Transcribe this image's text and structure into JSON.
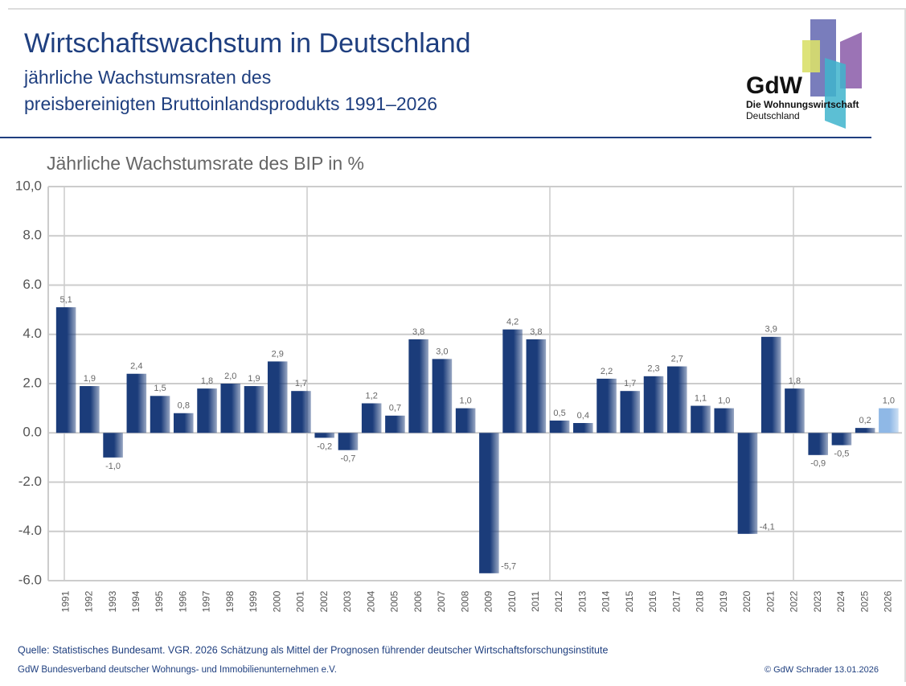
{
  "header": {
    "title": "Wirtschaftswachstum in Deutschland",
    "subtitle_line1": "jährliche Wachstumsraten des",
    "subtitle_line2": "preisbereinigten Bruttoinlandsprodukts 1991–2026"
  },
  "logo": {
    "name": "GdW",
    "line1": "Die Wohnungswirtschaft",
    "line2": "Deutschland"
  },
  "chart_data": {
    "type": "bar",
    "y_axis_label": "Jährliche Wachstumsrate des BIP in %",
    "categories": [
      "1991",
      "1992",
      "1993",
      "1994",
      "1995",
      "1996",
      "1997",
      "1998",
      "1999",
      "2000",
      "2001",
      "2002",
      "2003",
      "2004",
      "2005",
      "2006",
      "2007",
      "2008",
      "2009",
      "2010",
      "2011",
      "2012",
      "2013",
      "2014",
      "2015",
      "2016",
      "2017",
      "2018",
      "2019",
      "2020",
      "2021",
      "2022",
      "2023",
      "2024",
      "2025",
      "2026"
    ],
    "values": [
      5.1,
      1.9,
      -1.0,
      2.4,
      1.5,
      0.8,
      1.8,
      2.0,
      1.9,
      2.9,
      1.7,
      -0.2,
      -0.7,
      1.2,
      0.7,
      3.8,
      3.0,
      1.0,
      -5.7,
      4.2,
      3.8,
      0.5,
      0.4,
      2.2,
      1.7,
      2.3,
      2.7,
      1.1,
      1.0,
      -4.1,
      3.9,
      1.8,
      -0.9,
      -0.5,
      0.2,
      1.0
    ],
    "value_labels": [
      "5,1",
      "1,9",
      "-1,0",
      "2,4",
      "1,5",
      "0,8",
      "1,8",
      "2,0",
      "1,9",
      "2,9",
      "1,7",
      "-0,2",
      "-0,7",
      "1,2",
      "0,7",
      "3,8",
      "3,0",
      "1,0",
      "-5,7",
      "4,2",
      "3,8",
      "0,5",
      "0,4",
      "2,2",
      "1,7",
      "2,3",
      "2,7",
      "1,1",
      "1,0",
      "-4,1",
      "3,9",
      "1,8",
      "-0,9",
      "-0,5",
      "0,2",
      "1,0"
    ],
    "colors": [
      "#1b3c7a",
      "#1b3c7a",
      "#1b3c7a",
      "#1b3c7a",
      "#1b3c7a",
      "#1b3c7a",
      "#1b3c7a",
      "#1b3c7a",
      "#1b3c7a",
      "#1b3c7a",
      "#1b3c7a",
      "#1b3c7a",
      "#1b3c7a",
      "#1b3c7a",
      "#1b3c7a",
      "#1b3c7a",
      "#1b3c7a",
      "#1b3c7a",
      "#1b3c7a",
      "#1b3c7a",
      "#1b3c7a",
      "#1b3c7a",
      "#1b3c7a",
      "#1b3c7a",
      "#1b3c7a",
      "#1b3c7a",
      "#1b3c7a",
      "#1b3c7a",
      "#1b3c7a",
      "#1b3c7a",
      "#1b3c7a",
      "#1b3c7a",
      "#1b3c7a",
      "#1b3c7a",
      "#1b3c7a",
      "#8fb8e6"
    ],
    "ylim": [
      -6,
      10
    ],
    "yticks": [
      {
        "value": -6,
        "label": "-6.0"
      },
      {
        "value": -4,
        "label": "-4.0"
      },
      {
        "value": -2,
        "label": "-2.0"
      },
      {
        "value": 0,
        "label": "0.0"
      },
      {
        "value": 2,
        "label": "2.0"
      },
      {
        "value": 4,
        "label": "4.0"
      },
      {
        "value": 6,
        "label": "6.0"
      },
      {
        "value": 8,
        "label": "8.0"
      },
      {
        "value": 10,
        "label": "10,0"
      }
    ],
    "grid": true
  },
  "footer": {
    "source": "Quelle: Statistisches Bundesamt. VGR. 2026 Schätzung als Mittel der Prognosen führender deutscher Wirtschaftsforschungsinstitute",
    "organization": "GdW Bundesverband deutscher Wohnungs- und Immobilienunternehmen e.V.",
    "copyright": "© GdW Schrader 13.01.2026"
  }
}
